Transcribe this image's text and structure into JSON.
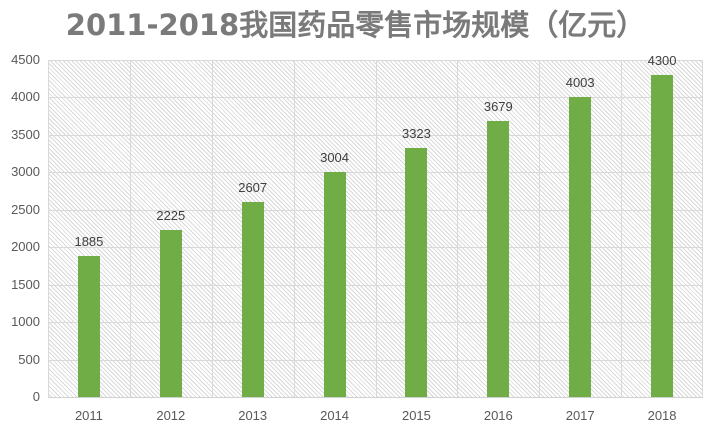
{
  "chart_data": {
    "type": "bar",
    "title": "2011-2018我国药品零售市场规模（亿元）",
    "categories": [
      "2011",
      "2012",
      "2013",
      "2014",
      "2015",
      "2016",
      "2017",
      "2018"
    ],
    "values": [
      1885,
      2225,
      2607,
      3004,
      3323,
      3679,
      4003,
      4300
    ],
    "data_labels": [
      "1885",
      "2225",
      "2607",
      "3004",
      "3323",
      "3679",
      "4003",
      "4300"
    ],
    "xlabel": "",
    "ylabel": "",
    "ylim": [
      0,
      4500
    ],
    "yticks": [
      "0",
      "500",
      "1000",
      "1500",
      "2000",
      "2500",
      "3000",
      "3500",
      "4000",
      "4500"
    ],
    "grid": true,
    "legend": "none",
    "bar_color": "#70AD47"
  }
}
